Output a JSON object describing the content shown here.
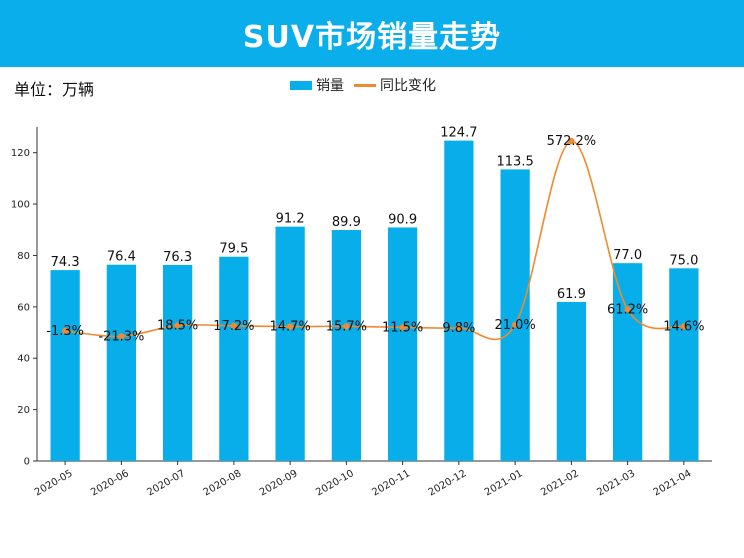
{
  "title": "SUV市场销量走势",
  "unit_label": "单位：万辆",
  "legend": {
    "bar_label": "销量",
    "line_label": "同比变化"
  },
  "colors": {
    "header": "#0aaeea",
    "bar": "#08aeea",
    "line": "#f0892f"
  },
  "chart_data": {
    "type": "bar",
    "title": "SUV市场销量走势",
    "xlabel": "",
    "ylabel": "",
    "ylim": [
      0,
      130
    ],
    "yticks": [
      0,
      20,
      40,
      60,
      80,
      100,
      120
    ],
    "legend_position": "top-center",
    "grid": false,
    "categories": [
      "2020-05",
      "2020-06",
      "2020-07",
      "2020-08",
      "2020-09",
      "2020-10",
      "2020-11",
      "2020-12",
      "2021-01",
      "2021-02",
      "2021-03",
      "2021-04"
    ],
    "series": [
      {
        "name": "销量",
        "type": "bar",
        "values": [
          74.3,
          76.4,
          76.3,
          79.5,
          91.2,
          89.9,
          90.9,
          124.7,
          113.5,
          61.9,
          77.0,
          75.0
        ],
        "labels": [
          "74.3",
          "76.4",
          "76.3",
          "79.5",
          "91.2",
          "89.9",
          "90.9",
          "124.7",
          "113.5",
          "61.9",
          "77.0",
          "75.0"
        ]
      },
      {
        "name": "同比变化",
        "type": "line",
        "secondary_axis": true,
        "values": [
          -1.3,
          -21.3,
          18.5,
          17.2,
          14.7,
          15.7,
          11.5,
          9.8,
          21.0,
          572.2,
          61.2,
          14.6
        ],
        "labels": [
          "-1.3%",
          "-21.3%",
          "18.5%",
          "17.2%",
          "14.7%",
          "15.7%",
          "11.5%",
          "9.8%",
          "21.0%",
          "572.2%",
          "61.2%",
          "14.6%"
        ]
      }
    ]
  }
}
